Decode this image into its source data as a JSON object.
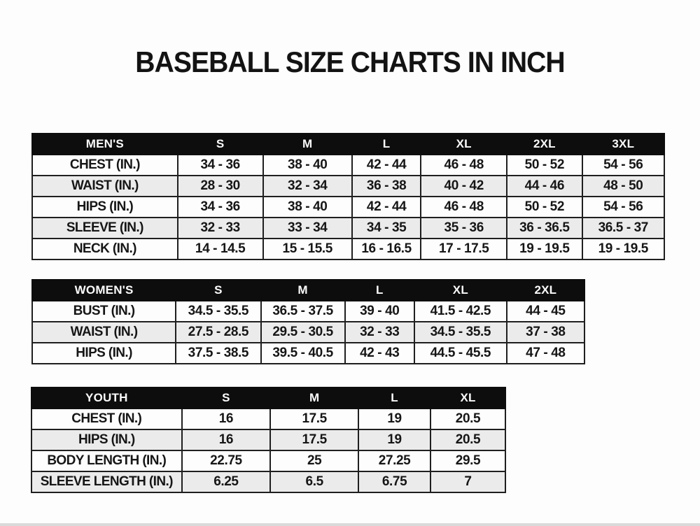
{
  "page": {
    "title": "BASEBALL SIZE CHARTS IN INCH",
    "background": "#fdfdfd",
    "header_bg": "#0d0d0d",
    "header_text_color": "#fbfbfb",
    "row_alt_bg": "#ebebeb",
    "border_color": "#1f1f1f",
    "unit": "INCH"
  },
  "tables": [
    {
      "name": "mens",
      "headers": [
        "MEN'S",
        "S",
        "M",
        "L",
        "XL",
        "2XL",
        "3XL"
      ],
      "rows": [
        {
          "label": "CHEST (IN.)",
          "values": [
            "34 - 36",
            "38 - 40",
            "42 - 44",
            "46 - 48",
            "50 - 52",
            "54 - 56"
          ]
        },
        {
          "label": "WAIST (IN.)",
          "values": [
            "28 - 30",
            "32 - 34",
            "36 - 38",
            "40 - 42",
            "44 - 46",
            "48 - 50"
          ]
        },
        {
          "label": "HIPS (IN.)",
          "values": [
            "34 - 36",
            "38 - 40",
            "42 - 44",
            "46 - 48",
            "50 - 52",
            "54 - 56"
          ]
        },
        {
          "label": "SLEEVE (IN.)",
          "values": [
            "32 - 33",
            "33 - 34",
            "34 - 35",
            "35 - 36",
            "36 - 36.5",
            "36.5 - 37"
          ]
        },
        {
          "label": "NECK (IN.)",
          "values": [
            "14 - 14.5",
            "15 - 15.5",
            "16 - 16.5",
            "17 - 17.5",
            "19 - 19.5",
            "19 - 19.5"
          ]
        }
      ]
    },
    {
      "name": "womens",
      "headers": [
        "WOMEN'S",
        "S",
        "M",
        "L",
        "XL",
        "2XL"
      ],
      "rows": [
        {
          "label": "BUST (IN.)",
          "values": [
            "34.5 - 35.5",
            "36.5 - 37.5",
            "39 - 40",
            "41.5 - 42.5",
            "44 - 45"
          ]
        },
        {
          "label": "WAIST (IN.)",
          "values": [
            "27.5 - 28.5",
            "29.5 - 30.5",
            "32 - 33",
            "34.5 - 35.5",
            "37 - 38"
          ]
        },
        {
          "label": "HIPS (IN.)",
          "values": [
            "37.5 - 38.5",
            "39.5 - 40.5",
            "42 - 43",
            "44.5 - 45.5",
            "47 - 48"
          ]
        }
      ]
    },
    {
      "name": "youth",
      "headers": [
        "YOUTH",
        "S",
        "M",
        "L",
        "XL"
      ],
      "rows": [
        {
          "label": "CHEST (IN.)",
          "values": [
            "16",
            "17.5",
            "19",
            "20.5"
          ]
        },
        {
          "label": "HIPS (IN.)",
          "values": [
            "16",
            "17.5",
            "19",
            "20.5"
          ]
        },
        {
          "label": "BODY LENGTH (IN.)",
          "values": [
            "22.75",
            "25",
            "27.25",
            "29.5"
          ]
        },
        {
          "label": "SLEEVE LENGTH (IN.)",
          "values": [
            "6.25",
            "6.5",
            "6.75",
            "7"
          ]
        }
      ]
    }
  ]
}
